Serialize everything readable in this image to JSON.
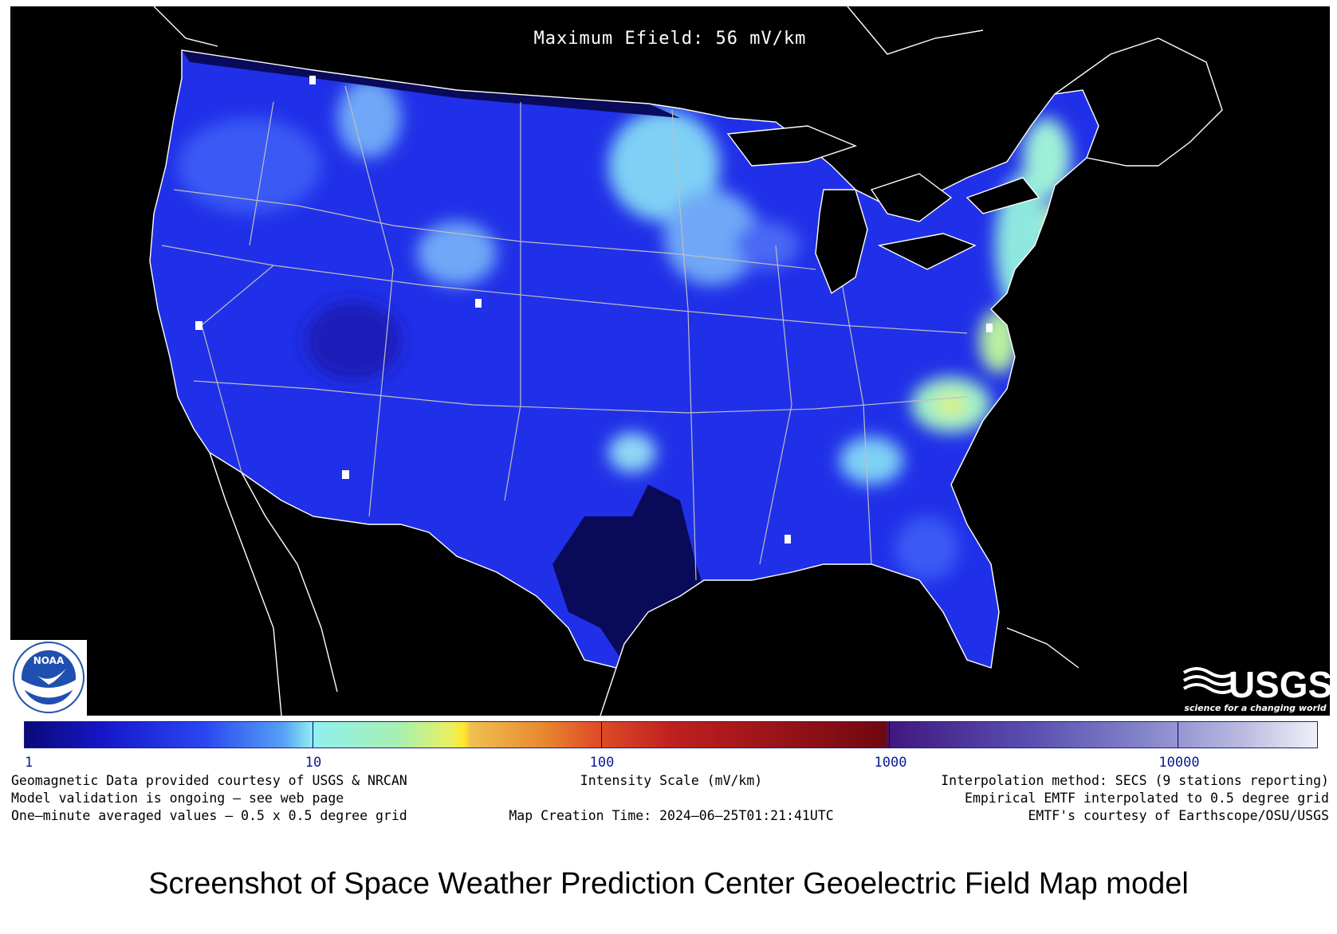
{
  "map": {
    "title": "Maximum Efield: 56 mV/km",
    "colors": {
      "background": "#000000",
      "low": "#1a1ab8",
      "mid": "#2b3cf0",
      "light": "#5fb0f5",
      "cyan": "#8ff0e8",
      "yellow": "#e0f07a",
      "dark": "#0a0a5a"
    },
    "stations_icon": "white-square-marker"
  },
  "logos": {
    "noaa_text": "NOAA",
    "usgs_text": "USGS",
    "usgs_tagline": "science for a changing world"
  },
  "colorbar": {
    "scale": "log",
    "range": [
      1,
      30000
    ],
    "ticks": [
      "1",
      "10",
      "100",
      "1000",
      "10000"
    ]
  },
  "footer": {
    "left_1": "Geomagnetic Data provided courtesy of USGS & NRCAN",
    "left_2": "Model validation is ongoing – see web page",
    "left_3": "One–minute averaged values – 0.5 x 0.5 degree grid",
    "center_1": "Intensity Scale (mV/km)",
    "center_2": "Map Creation Time: 2024–06–25T01:21:41UTC",
    "right_1": "Interpolation method: SECS (9 stations reporting)",
    "right_2": "Empirical EMTF interpolated to 0.5 degree grid",
    "right_3": "EMTF's courtesy of Earthscope/OSU/USGS"
  },
  "caption": "Screenshot of Space Weather Prediction Center Geoelectric Field Map model"
}
